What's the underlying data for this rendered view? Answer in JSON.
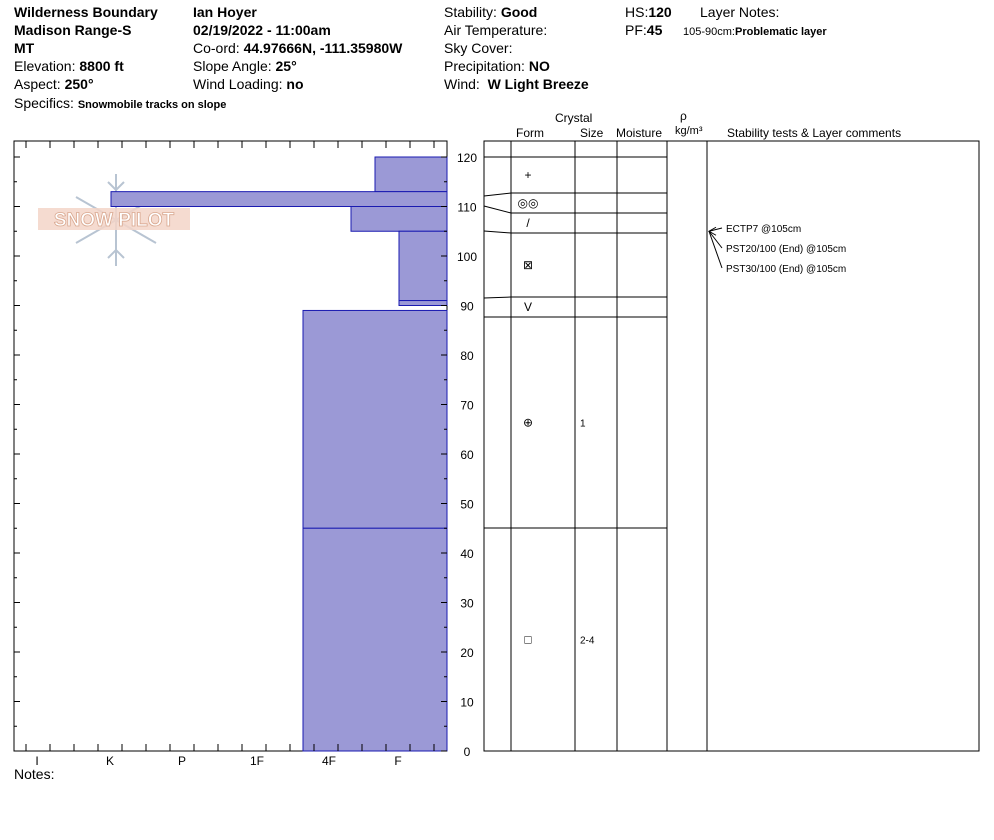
{
  "header": {
    "location": "Wilderness Boundary",
    "range": "Madison Range-S",
    "state": "MT",
    "elevation_label": "Elevation:",
    "elevation_value": "8800 ft",
    "aspect_label": "Aspect:",
    "aspect_value": "250°",
    "specifics_label": "Specifics:",
    "specifics_value": "Snowmobile tracks on slope",
    "observer": "Ian Hoyer",
    "datetime": "02/19/2022 - 11:00am",
    "coord_label": "Co-ord:",
    "coord_value": "44.97666N, -111.35980W",
    "slope_label": "Slope Angle:",
    "slope_value": "25°",
    "wind_loading_label": "Wind Loading:",
    "wind_loading_value": "no",
    "stability_label": "Stability:",
    "stability_value": "Good",
    "air_temp_label": "Air Temperature:",
    "sky_cover_label": "Sky Cover:",
    "precip_label": "Precipitation:",
    "precip_value": "NO",
    "wind_label": "Wind:",
    "wind_value": "W Light Breeze",
    "hs_label": "HS:",
    "hs_value": "120",
    "pf_label": "PF:",
    "pf_value": "45",
    "layer_notes_label": "Layer Notes:",
    "layer_notes_range": "105-90cm:",
    "layer_notes_value": "Problematic layer",
    "notes_label": "Notes:"
  },
  "logo_text": "SNOW PILOT",
  "columns": {
    "crystal": "Crystal",
    "form": "Form",
    "size": "Size",
    "moisture": "Moisture",
    "rho": "ρ",
    "density_unit": "kg/m³",
    "comments": "Stability tests & Layer comments"
  },
  "hardness_labels": [
    "I",
    "K",
    "P",
    "1F",
    "4F",
    "F"
  ],
  "depth_ticks": [
    0,
    10,
    20,
    30,
    40,
    50,
    60,
    70,
    80,
    90,
    100,
    110,
    120
  ],
  "layers": [
    {
      "top": 120,
      "bottom": 113,
      "hardness": "1F-4F"
    },
    {
      "top": 113,
      "bottom": 110,
      "hardness": "K-"
    },
    {
      "top": 110,
      "bottom": 105,
      "hardness": "1F"
    },
    {
      "top": 105,
      "bottom": 91,
      "hardness": "4F-"
    },
    {
      "top": 91,
      "bottom": 90,
      "hardness": "4F-"
    },
    {
      "top": 89,
      "bottom": 45,
      "hardness": "F+"
    },
    {
      "top": 45,
      "bottom": 0,
      "hardness": "F+"
    }
  ],
  "crystal_rows": [
    {
      "top": 120,
      "bottom": 113,
      "form": "+",
      "size": ""
    },
    {
      "top": 113,
      "bottom": 109,
      "form": "◎◎",
      "size": ""
    },
    {
      "top": 109,
      "bottom": 105,
      "form": "/",
      "size": ""
    },
    {
      "top": 105,
      "bottom": 92,
      "form": "⊠",
      "size": ""
    },
    {
      "top": 92,
      "bottom": 88,
      "form": "V",
      "size": ""
    },
    {
      "top": 88,
      "bottom": 45,
      "form": "⊕",
      "size": "1"
    },
    {
      "top": 45,
      "bottom": 0,
      "form": "□",
      "size": "2-4"
    }
  ],
  "stability_tests": [
    "ECTP7 @105cm",
    "PST20/100 (End) @105cm",
    "PST30/100 (End) @105cm"
  ],
  "stability_test_depth": 105
}
